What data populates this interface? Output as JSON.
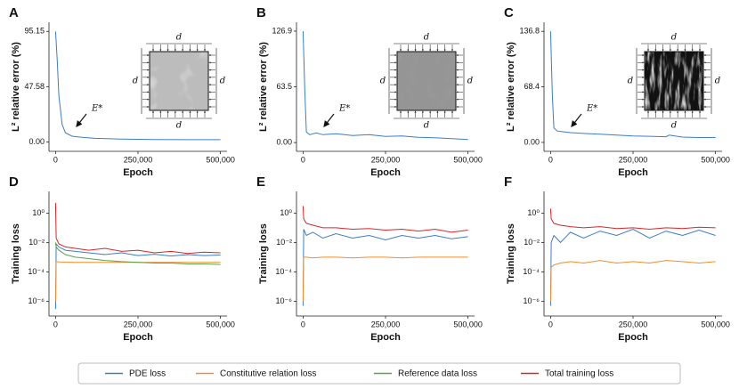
{
  "chart_data": [
    {
      "type": "line",
      "label": "A",
      "ylabel": "L² relative error (%)",
      "xlabel": "Epoch",
      "annotation": "E*",
      "inset_label": "d",
      "color": "#3b7dc4",
      "x": [
        0,
        5000,
        10000,
        20000,
        30000,
        50000,
        80000,
        120000,
        200000,
        300000,
        400000,
        500000
      ],
      "values": [
        95.15,
        70,
        40,
        15,
        8,
        5,
        4,
        3.2,
        2.5,
        2.2,
        2,
        2
      ],
      "xlim": [
        -20000,
        520000
      ],
      "xticks": [
        0,
        {
          "value": 250000,
          "label": "250,000"
        },
        {
          "value": 500000,
          "label": "500,000"
        }
      ],
      "ylim": [
        -8,
        103
      ],
      "yticks": [
        {
          "value": 0,
          "label": "0.00"
        },
        47.58,
        95.15
      ]
    },
    {
      "type": "line",
      "label": "B",
      "ylabel": "L² relative error (%)",
      "xlabel": "Epoch",
      "annotation": "E*",
      "inset_label": "d",
      "color": "#3b7dc4",
      "x": [
        0,
        5000,
        10000,
        20000,
        40000,
        60000,
        100000,
        150000,
        200000,
        250000,
        300000,
        350000,
        400000,
        450000,
        500000
      ],
      "values": [
        126.9,
        60,
        12,
        9,
        11,
        9,
        10,
        8,
        9,
        7,
        7.5,
        6,
        5.5,
        4.5,
        3.5
      ],
      "xlim": [
        -20000,
        520000
      ],
      "xticks": [
        0,
        {
          "value": 250000,
          "label": "250,000"
        },
        {
          "value": 500000,
          "label": "500,000"
        }
      ],
      "ylim": [
        -10,
        137
      ],
      "yticks": [
        {
          "value": 0,
          "label": "0.00"
        },
        63.5,
        126.9
      ]
    },
    {
      "type": "line",
      "label": "C",
      "ylabel": "L² relative error (%)",
      "xlabel": "Epoch",
      "annotation": "E*",
      "inset_label": "d",
      "color": "#3b7dc4",
      "x": [
        0,
        5000,
        10000,
        20000,
        40000,
        60000,
        100000,
        150000,
        200000,
        250000,
        300000,
        350000,
        360000,
        400000,
        450000,
        500000
      ],
      "values": [
        136.8,
        60,
        18,
        14,
        13,
        12,
        11,
        10,
        9,
        8,
        7.5,
        7,
        9,
        6.5,
        6,
        6
      ],
      "xlim": [
        -20000,
        520000
      ],
      "xticks": [
        0,
        {
          "value": 250000,
          "label": "250,000"
        },
        {
          "value": 500000,
          "label": "500,000"
        }
      ],
      "ylim": [
        -11,
        148
      ],
      "yticks": [
        {
          "value": 0,
          "label": "0.00"
        },
        68.4,
        136.8
      ]
    },
    {
      "type": "line",
      "yscale": "log",
      "label": "D",
      "ylabel": "Training loss",
      "xlabel": "Epoch",
      "x": [
        0,
        2000,
        10000,
        30000,
        60000,
        100000,
        150000,
        200000,
        250000,
        300000,
        350000,
        400000,
        450000,
        500000
      ],
      "series": [
        {
          "name": "PDE loss",
          "color": "#3b7dc4",
          "values": [
            3e-07,
            0.008,
            0.005,
            0.003,
            0.0025,
            0.002,
            0.0015,
            0.002,
            0.0013,
            0.0016,
            0.0012,
            0.0015,
            0.0013,
            0.0014
          ]
        },
        {
          "name": "Constitutive relation loss",
          "color": "#f28e2b",
          "values": [
            1e-06,
            0.0005,
            0.00048,
            0.00046,
            0.00045,
            0.00045,
            0.00045,
            0.00045,
            0.00045,
            0.00045,
            0.00045,
            0.00045,
            0.00045,
            0.00045
          ]
        },
        {
          "name": "Reference data loss",
          "color": "#59a14f",
          "values": [
            0.01,
            0.005,
            0.003,
            0.0015,
            0.001,
            0.0008,
            0.0006,
            0.0005,
            0.00045,
            0.0004,
            0.0004,
            0.00035,
            0.00035,
            0.00032
          ]
        },
        {
          "name": "Total training loss",
          "color": "#d62728",
          "values": [
            5,
            0.02,
            0.008,
            0.005,
            0.004,
            0.003,
            0.004,
            0.0025,
            0.003,
            0.002,
            0.0025,
            0.0018,
            0.0022,
            0.002
          ]
        }
      ],
      "xlim": [
        -20000,
        520000
      ],
      "xticks": [
        0,
        {
          "value": 250000,
          "label": "250,000"
        },
        {
          "value": 500000,
          "label": "500,000"
        }
      ],
      "ylim": [
        1e-07,
        30
      ],
      "yticks": [
        {
          "value": 1e-06,
          "label": "10⁻⁶"
        },
        {
          "value": 0.0001,
          "label": "10⁻⁴"
        },
        {
          "value": 0.01,
          "label": "10⁻²"
        },
        {
          "value": 1,
          "label": "10⁰"
        }
      ]
    },
    {
      "type": "line",
      "yscale": "log",
      "label": "E",
      "ylabel": "Training loss",
      "xlabel": "Epoch",
      "x": [
        0,
        2000,
        10000,
        30000,
        60000,
        100000,
        150000,
        200000,
        250000,
        300000,
        350000,
        400000,
        450000,
        500000
      ],
      "series": [
        {
          "name": "PDE loss",
          "color": "#3b7dc4",
          "values": [
            5e-07,
            0.08,
            0.03,
            0.05,
            0.02,
            0.04,
            0.02,
            0.03,
            0.015,
            0.03,
            0.02,
            0.03,
            0.018,
            0.025
          ]
        },
        {
          "name": "Constitutive relation loss",
          "color": "#f28e2b",
          "values": [
            1e-06,
            0.001,
            0.001,
            0.0009,
            0.001,
            0.001,
            0.0009,
            0.001,
            0.001,
            0.0009,
            0.001,
            0.001,
            0.001,
            0.001
          ]
        },
        {
          "name": "Total training loss",
          "color": "#d62728",
          "values": [
            3,
            0.4,
            0.2,
            0.15,
            0.1,
            0.1,
            0.08,
            0.09,
            0.07,
            0.08,
            0.06,
            0.08,
            0.05,
            0.07
          ]
        }
      ],
      "xlim": [
        -20000,
        520000
      ],
      "xticks": [
        0,
        {
          "value": 250000,
          "label": "250,000"
        },
        {
          "value": 500000,
          "label": "500,000"
        }
      ],
      "ylim": [
        1e-07,
        30
      ],
      "yticks": [
        {
          "value": 1e-06,
          "label": "10⁻⁶"
        },
        {
          "value": 0.0001,
          "label": "10⁻⁴"
        },
        {
          "value": 0.01,
          "label": "10⁻²"
        },
        {
          "value": 1,
          "label": "10⁰"
        }
      ]
    },
    {
      "type": "line",
      "yscale": "log",
      "label": "F",
      "ylabel": "Training loss",
      "xlabel": "Epoch",
      "x": [
        0,
        2000,
        10000,
        30000,
        60000,
        100000,
        150000,
        200000,
        250000,
        300000,
        350000,
        400000,
        450000,
        500000
      ],
      "series": [
        {
          "name": "PDE loss",
          "color": "#3b7dc4",
          "values": [
            5e-07,
            0.01,
            0.03,
            0.01,
            0.05,
            0.02,
            0.06,
            0.03,
            0.08,
            0.02,
            0.06,
            0.03,
            0.07,
            0.03
          ]
        },
        {
          "name": "Constitutive relation loss",
          "color": "#f28e2b",
          "values": [
            1e-06,
            0.0002,
            0.0003,
            0.0004,
            0.0005,
            0.0004,
            0.0006,
            0.0004,
            0.0005,
            0.0004,
            0.0006,
            0.0005,
            0.0004,
            0.0005
          ]
        },
        {
          "name": "Total training loss",
          "color": "#d62728",
          "values": [
            2,
            0.4,
            0.2,
            0.15,
            0.12,
            0.1,
            0.12,
            0.09,
            0.1,
            0.08,
            0.1,
            0.09,
            0.11,
            0.1
          ]
        }
      ],
      "xlim": [
        -20000,
        520000
      ],
      "xticks": [
        0,
        {
          "value": 250000,
          "label": "250,000"
        },
        {
          "value": 500000,
          "label": "500,000"
        }
      ],
      "ylim": [
        1e-07,
        30
      ],
      "yticks": [
        {
          "value": 1e-06,
          "label": "10⁻⁶"
        },
        {
          "value": 0.0001,
          "label": "10⁻⁴"
        },
        {
          "value": 0.01,
          "label": "10⁻²"
        },
        {
          "value": 1,
          "label": "10⁰"
        }
      ]
    }
  ]
}
